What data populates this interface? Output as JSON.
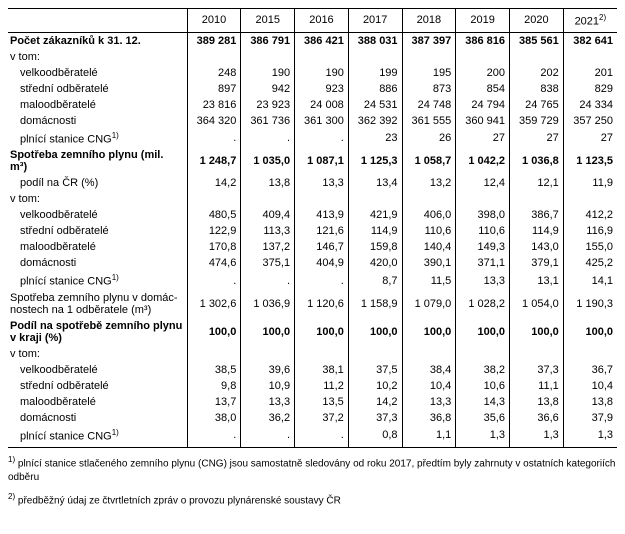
{
  "years": [
    "2010",
    "2015",
    "2016",
    "2017",
    "2018",
    "2019",
    "2020",
    "2021"
  ],
  "year_super": [
    "",
    "",
    "",
    "",
    "",
    "",
    "",
    "2)"
  ],
  "rows": [
    {
      "label": "Počet zákazníků k 31. 12.",
      "bold": true,
      "indent": 0,
      "vals": [
        "389 281",
        "386 791",
        "386 421",
        "388 031",
        "387 397",
        "386 816",
        "385 561",
        "382 641"
      ]
    },
    {
      "label": "v tom:",
      "bold": false,
      "indent": 0,
      "vals": [
        "",
        "",
        "",
        "",
        "",
        "",
        "",
        ""
      ]
    },
    {
      "label": "velkoodběratelé",
      "bold": false,
      "indent": 1,
      "vals": [
        "248",
        "190",
        "190",
        "199",
        "195",
        "200",
        "202",
        "201"
      ]
    },
    {
      "label": "střední odběratelé",
      "bold": false,
      "indent": 1,
      "vals": [
        "897",
        "942",
        "923",
        "886",
        "873",
        "854",
        "838",
        "829"
      ]
    },
    {
      "label": "maloodběratelé",
      "bold": false,
      "indent": 1,
      "vals": [
        "23 816",
        "23 923",
        "24 008",
        "24 531",
        "24 748",
        "24 794",
        "24 765",
        "24 334"
      ]
    },
    {
      "label": "domácnosti",
      "bold": false,
      "indent": 1,
      "vals": [
        "364 320",
        "361 736",
        "361 300",
        "362 392",
        "361 555",
        "360 941",
        "359 729",
        "357 250"
      ]
    },
    {
      "label": "plnící stanice CNG",
      "sup": "1)",
      "bold": false,
      "indent": 1,
      "vals": [
        ".",
        ".",
        ".",
        "23",
        "26",
        "27",
        "27",
        "27"
      ]
    },
    {
      "label": "Spotřeba zemního plynu (mil. m³)",
      "bold": true,
      "indent": 0,
      "vals": [
        "1 248,7",
        "1 035,0",
        "1 087,1",
        "1 125,3",
        "1 058,7",
        "1 042,2",
        "1 036,8",
        "1 123,5"
      ]
    },
    {
      "label": "podíl na ČR (%)",
      "bold": false,
      "indent": 1,
      "vals": [
        "14,2",
        "13,8",
        "13,3",
        "13,4",
        "13,2",
        "12,4",
        "12,1",
        "11,9"
      ]
    },
    {
      "label": "v tom:",
      "bold": false,
      "indent": 0,
      "vals": [
        "",
        "",
        "",
        "",
        "",
        "",
        "",
        ""
      ]
    },
    {
      "label": "velkoodběratelé",
      "bold": false,
      "indent": 1,
      "vals": [
        "480,5",
        "409,4",
        "413,9",
        "421,9",
        "406,0",
        "398,0",
        "386,7",
        "412,2"
      ]
    },
    {
      "label": "střední odběratelé",
      "bold": false,
      "indent": 1,
      "vals": [
        "122,9",
        "113,3",
        "121,6",
        "114,9",
        "110,6",
        "110,6",
        "114,9",
        "116,9"
      ]
    },
    {
      "label": "maloodběratelé",
      "bold": false,
      "indent": 1,
      "vals": [
        "170,8",
        "137,2",
        "146,7",
        "159,8",
        "140,4",
        "149,3",
        "143,0",
        "155,0"
      ]
    },
    {
      "label": "domácnosti",
      "bold": false,
      "indent": 1,
      "vals": [
        "474,6",
        "375,1",
        "404,9",
        "420,0",
        "390,1",
        "371,1",
        "379,1",
        "425,2"
      ]
    },
    {
      "label": "plnící stanice CNG",
      "sup": "1)",
      "bold": false,
      "indent": 1,
      "vals": [
        ".",
        ".",
        ".",
        "8,7",
        "11,5",
        "13,3",
        "13,1",
        "14,1"
      ]
    },
    {
      "label": "Spotřeba zemního plynu v domác-nostech na 1 odběratele (m³)",
      "bold": false,
      "indent": 0,
      "vals": [
        "1 302,6",
        "1 036,9",
        "1 120,6",
        "1 158,9",
        "1 079,0",
        "1 028,2",
        "1 054,0",
        "1 190,3"
      ]
    },
    {
      "label": "Podíl na spotřebě zemního plynu v kraji (%)",
      "bold": true,
      "indent": 0,
      "vals": [
        "100,0",
        "100,0",
        "100,0",
        "100,0",
        "100,0",
        "100,0",
        "100,0",
        "100,0"
      ]
    },
    {
      "label": "v tom:",
      "bold": false,
      "indent": 0,
      "vals": [
        "",
        "",
        "",
        "",
        "",
        "",
        "",
        ""
      ]
    },
    {
      "label": "velkoodběratelé",
      "bold": false,
      "indent": 1,
      "vals": [
        "38,5",
        "39,6",
        "38,1",
        "37,5",
        "38,4",
        "38,2",
        "37,3",
        "36,7"
      ]
    },
    {
      "label": "střední odběratelé",
      "bold": false,
      "indent": 1,
      "vals": [
        "9,8",
        "10,9",
        "11,2",
        "10,2",
        "10,4",
        "10,6",
        "11,1",
        "10,4"
      ]
    },
    {
      "label": "maloodběratelé",
      "bold": false,
      "indent": 1,
      "vals": [
        "13,7",
        "13,3",
        "13,5",
        "14,2",
        "13,3",
        "14,3",
        "13,8",
        "13,8"
      ]
    },
    {
      "label": "domácnosti",
      "bold": false,
      "indent": 1,
      "vals": [
        "38,0",
        "36,2",
        "37,2",
        "37,3",
        "36,8",
        "35,6",
        "36,6",
        "37,9"
      ]
    },
    {
      "label": "plnící stanice CNG",
      "sup": "1)",
      "bold": false,
      "indent": 1,
      "vals": [
        ".",
        ".",
        ".",
        "0,8",
        "1,1",
        "1,3",
        "1,3",
        "1,3"
      ],
      "last": true
    }
  ],
  "footnotes": [
    {
      "sup": "1)",
      "text": "plnící stanice stlačeného zemního plynu (CNG) jsou samostatně sledovány od roku 2017, předtím byly zahrnuty v ostatních kategoriích odběru"
    },
    {
      "sup": "2)",
      "text": "předběžný údaj ze čtvrtletních zpráv o provozu plynárenské soustavy ČR"
    }
  ]
}
